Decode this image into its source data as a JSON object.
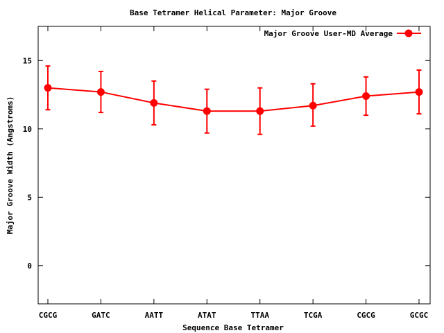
{
  "chart_data": {
    "type": "line",
    "title": "Base Tetramer Helical Parameter: Major Groove",
    "xlabel": "Sequence Base Tetramer",
    "ylabel": "Major Groove Width (Angstroms)",
    "categories": [
      "CGCG",
      "GATC",
      "AATT",
      "ATAT",
      "TTAA",
      "TCGA",
      "CGCG",
      "GCGC"
    ],
    "ylim": [
      -2.8,
      17.5
    ],
    "yticks": [
      0,
      5,
      10,
      15
    ],
    "yticks_labels": [
      "0",
      "5",
      "10",
      "15"
    ],
    "grid": false,
    "legend_position": "top-right",
    "series": [
      {
        "name": "Major Groove User-MD Average",
        "color": "#ff0000",
        "values": [
          13.0,
          12.7,
          11.9,
          11.3,
          11.3,
          11.7,
          12.4,
          12.7
        ],
        "error_low": [
          11.4,
          11.2,
          10.3,
          9.7,
          9.6,
          10.2,
          11.0,
          11.1
        ],
        "error_high": [
          14.6,
          14.2,
          13.5,
          12.9,
          13.0,
          13.3,
          13.8,
          14.3
        ]
      }
    ]
  }
}
